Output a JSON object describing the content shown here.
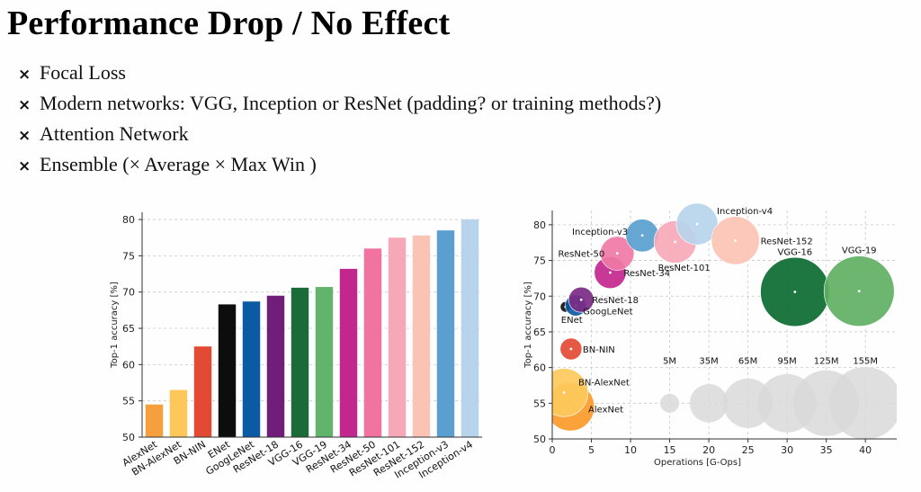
{
  "slide": {
    "title": "Performance Drop / No Effect",
    "bullet_mark": "×",
    "bullets": [
      "Focal Loss",
      "Modern networks: VGG, Inception or ResNet (padding? or training methods?)",
      "Attention Network",
      "Ensemble (× Average × Max Win )"
    ]
  },
  "chart_data": [
    {
      "type": "bar",
      "ylabel": "Top-1 accuracy [%]",
      "xlabel": "",
      "ylim": [
        50,
        81
      ],
      "yticks": [
        50,
        55,
        60,
        65,
        70,
        75,
        80
      ],
      "grid": true,
      "categories": [
        "AlexNet",
        "BN-AlexNet",
        "BN-NIN",
        "ENet",
        "GoogLeNet",
        "ResNet-18",
        "VGG-16",
        "VGG-19",
        "ResNet-34",
        "ResNet-50",
        "ResNet-101",
        "ResNet-152",
        "Inception-v3",
        "Inception-v4"
      ],
      "values": [
        54.5,
        56.5,
        62.5,
        68.3,
        68.7,
        69.5,
        70.6,
        70.7,
        73.2,
        76.0,
        77.5,
        77.8,
        78.5,
        80.0
      ],
      "colors": [
        "#f5a03c",
        "#fdc75a",
        "#e34a33",
        "#0d0d0d",
        "#0b5aa6",
        "#6f1e7a",
        "#1a6b38",
        "#62b46c",
        "#c2278e",
        "#f272a0",
        "#f7a8b8",
        "#fbc3b4",
        "#5a9fcf",
        "#b7d4ec"
      ]
    },
    {
      "type": "scatter",
      "xlabel": "Operations [G-Ops]",
      "ylabel": "Top-1 accuracy [%]",
      "xlim": [
        0,
        44
      ],
      "ylim": [
        50,
        82
      ],
      "xticks": [
        0,
        5,
        10,
        15,
        20,
        25,
        30,
        35,
        40
      ],
      "yticks": [
        50,
        55,
        60,
        65,
        70,
        75,
        80
      ],
      "grid": true,
      "points": [
        {
          "name": "AlexNet",
          "x": 2.3,
          "y": 54.5,
          "params_m": 61,
          "color": "#fb9a2a"
        },
        {
          "name": "BN-AlexNet",
          "x": 1.5,
          "y": 56.5,
          "params_m": 61,
          "color": "#fcc95c"
        },
        {
          "name": "BN-NIN",
          "x": 2.4,
          "y": 62.6,
          "params_m": 7.6,
          "color": "#e34a33"
        },
        {
          "name": "ENet",
          "x": 1.7,
          "y": 68.5,
          "params_m": 0.4,
          "color": "#111111"
        },
        {
          "name": "GoogLeNet",
          "x": 3.0,
          "y": 68.7,
          "params_m": 7,
          "color": "#0b5aa6"
        },
        {
          "name": "ResNet-18",
          "x": 3.7,
          "y": 69.5,
          "params_m": 11.7,
          "color": "#7b2b86"
        },
        {
          "name": "ResNet-34",
          "x": 7.4,
          "y": 73.3,
          "params_m": 21.8,
          "color": "#c2278e"
        },
        {
          "name": "ResNet-50",
          "x": 8.3,
          "y": 76.0,
          "params_m": 25.6,
          "color": "#ef7aa6"
        },
        {
          "name": "Inception-v3",
          "x": 11.5,
          "y": 78.5,
          "params_m": 23.8,
          "color": "#5a9fcf"
        },
        {
          "name": "ResNet-101",
          "x": 15.7,
          "y": 77.6,
          "params_m": 44.5,
          "color": "#f7a8b8"
        },
        {
          "name": "Inception-v4",
          "x": 18.5,
          "y": 80.1,
          "params_m": 42.7,
          "color": "#b7d4ec"
        },
        {
          "name": "ResNet-152",
          "x": 23.4,
          "y": 77.8,
          "params_m": 60.2,
          "color": "#fbc3b4"
        },
        {
          "name": "VGG-16",
          "x": 31.0,
          "y": 70.6,
          "params_m": 138,
          "color": "#0b6a30"
        },
        {
          "name": "VGG-19",
          "x": 39.2,
          "y": 70.7,
          "params_m": 144,
          "color": "#5fb063"
        }
      ],
      "size_legend": [
        {
          "label": "5M",
          "x": 15,
          "params_m": 5
        },
        {
          "label": "35M",
          "x": 20,
          "params_m": 35
        },
        {
          "label": "65M",
          "x": 25,
          "params_m": 65
        },
        {
          "label": "95M",
          "x": 30,
          "params_m": 95
        },
        {
          "label": "125M",
          "x": 35,
          "params_m": 125
        },
        {
          "label": "155M",
          "x": 40,
          "params_m": 155
        }
      ],
      "size_legend_y": 55,
      "size_legend_color": "#d9d9d9"
    }
  ]
}
